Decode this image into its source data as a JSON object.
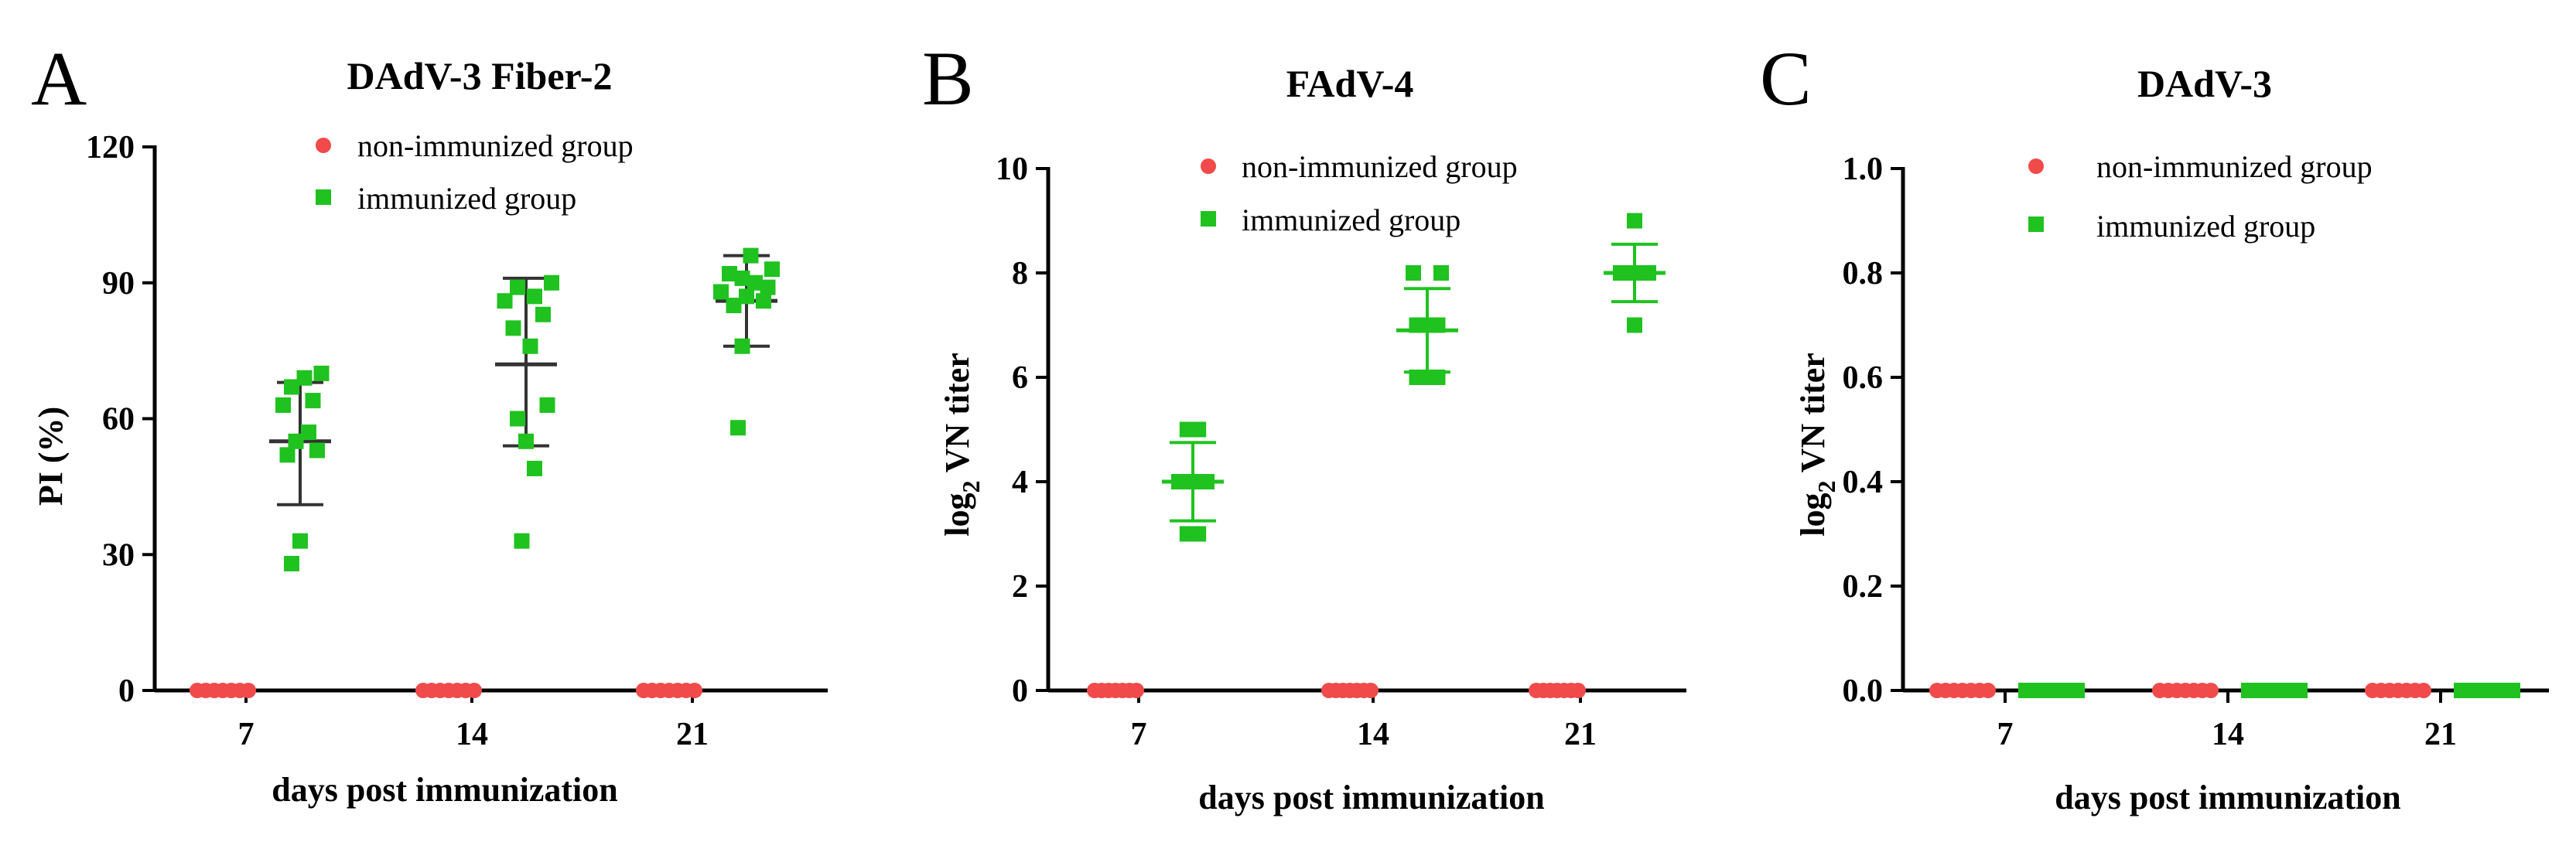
{
  "colors": {
    "non_immunized": "#f04a4a",
    "immunized": "#1fc21f",
    "error_bar_a": "#333333",
    "error_bar_b": "#1fc21f"
  },
  "chart_data": [
    {
      "panel": "A",
      "type": "scatter",
      "title": "DAdV-3 Fiber-2",
      "xlabel": "days post immunization",
      "ylabel": "PI (%)",
      "ylabel_sub": "",
      "ylabel_suffix": "",
      "categories": [
        "7",
        "14",
        "21"
      ],
      "ylim": [
        0,
        120
      ],
      "yticks": [
        0,
        30,
        60,
        90,
        120
      ],
      "ytick_labels": [
        "0",
        "30",
        "60",
        "90",
        "120"
      ],
      "legend": [
        "non-immunized group",
        "immunized group"
      ],
      "series": [
        {
          "name": "non-immunized group",
          "marker": "circle",
          "points": [
            [
              0,
              0
            ],
            [
              0,
              0
            ],
            [
              0,
              0
            ],
            [
              0,
              0
            ],
            [
              0,
              0
            ],
            [
              0,
              0
            ],
            [
              0,
              0
            ],
            [
              1,
              0
            ],
            [
              1,
              0
            ],
            [
              1,
              0
            ],
            [
              1,
              0
            ],
            [
              1,
              0
            ],
            [
              1,
              0
            ],
            [
              1,
              0
            ],
            [
              2,
              0
            ],
            [
              2,
              0
            ],
            [
              2,
              0
            ],
            [
              2,
              0
            ],
            [
              2,
              0
            ],
            [
              2,
              0
            ],
            [
              2,
              0
            ]
          ],
          "jitter": [
            -0.3,
            -0.2,
            -0.1,
            0,
            0.1,
            0.2,
            0.3,
            -0.3,
            -0.2,
            -0.1,
            0,
            0.1,
            0.2,
            0.3,
            -0.3,
            -0.2,
            -0.1,
            0,
            0.1,
            0.2,
            0.3
          ]
        },
        {
          "name": "immunized group",
          "marker": "square",
          "points": [
            [
              0,
              70
            ],
            [
              0,
              69
            ],
            [
              0,
              67
            ],
            [
              0,
              64
            ],
            [
              0,
              63
            ],
            [
              0,
              57
            ],
            [
              0,
              55
            ],
            [
              0,
              53
            ],
            [
              0,
              52
            ],
            [
              0,
              33
            ],
            [
              0,
              28
            ],
            [
              1,
              90
            ],
            [
              1,
              89
            ],
            [
              1,
              87
            ],
            [
              1,
              86
            ],
            [
              1,
              83
            ],
            [
              1,
              80
            ],
            [
              1,
              76
            ],
            [
              1,
              63
            ],
            [
              1,
              60
            ],
            [
              1,
              55
            ],
            [
              1,
              49
            ],
            [
              1,
              33
            ],
            [
              2,
              96
            ],
            [
              2,
              93
            ],
            [
              2,
              92
            ],
            [
              2,
              91
            ],
            [
              2,
              90
            ],
            [
              2,
              89
            ],
            [
              2,
              88
            ],
            [
              2,
              87
            ],
            [
              2,
              86
            ],
            [
              2,
              85
            ],
            [
              2,
              76
            ],
            [
              2,
              58
            ]
          ],
          "jitter": [
            0.25,
            0.05,
            -0.1,
            0.15,
            -0.2,
            0.1,
            -0.05,
            0.2,
            -0.15,
            0,
            -0.1,
            0.3,
            -0.1,
            0.1,
            -0.25,
            0.2,
            -0.15,
            0.05,
            0.25,
            -0.1,
            0,
            0.1,
            -0.05,
            0.05,
            0.3,
            -0.2,
            -0.05,
            0.1,
            0.25,
            -0.3,
            0,
            0.2,
            -0.15,
            -0.05,
            -0.1
          ]
        }
      ],
      "error_bars": [
        {
          "category": 0,
          "mean": 55,
          "lower": 41,
          "upper": 68
        },
        {
          "category": 1,
          "mean": 72,
          "lower": 54,
          "upper": 91
        },
        {
          "category": 2,
          "mean": 86,
          "lower": 76,
          "upper": 96
        }
      ]
    },
    {
      "panel": "B",
      "type": "scatter",
      "title": "FAdV-4",
      "xlabel": "days post immunization",
      "ylabel": "log",
      "ylabel_sub": "2",
      "ylabel_suffix": " VN titer",
      "categories": [
        "7",
        "14",
        "21"
      ],
      "ylim": [
        0,
        10
      ],
      "yticks": [
        0,
        2,
        4,
        6,
        8,
        10
      ],
      "ytick_labels": [
        "0",
        "2",
        "4",
        "6",
        "8",
        "10"
      ],
      "legend": [
        "non-immunized group",
        "immunized group"
      ],
      "series": [
        {
          "name": "non-immunized group",
          "marker": "circle",
          "points": [
            [
              0,
              0
            ],
            [
              0,
              0
            ],
            [
              0,
              0
            ],
            [
              0,
              0
            ],
            [
              0,
              0
            ],
            [
              0,
              0
            ],
            [
              0,
              0
            ],
            [
              1,
              0
            ],
            [
              1,
              0
            ],
            [
              1,
              0
            ],
            [
              1,
              0
            ],
            [
              1,
              0
            ],
            [
              1,
              0
            ],
            [
              1,
              0
            ],
            [
              2,
              0
            ],
            [
              2,
              0
            ],
            [
              2,
              0
            ],
            [
              2,
              0
            ],
            [
              2,
              0
            ],
            [
              2,
              0
            ],
            [
              2,
              0
            ]
          ],
          "jitter": [
            -0.3,
            -0.2,
            -0.1,
            0,
            0.1,
            0.2,
            0.3,
            -0.3,
            -0.2,
            -0.1,
            0,
            0.1,
            0.2,
            0.3,
            -0.3,
            -0.2,
            -0.1,
            0,
            0.1,
            0.2,
            0.3
          ]
        },
        {
          "name": "immunized group",
          "marker": "square",
          "points": [
            [
              0,
              5
            ],
            [
              0,
              5
            ],
            [
              0,
              4
            ],
            [
              0,
              4
            ],
            [
              0,
              4
            ],
            [
              0,
              4
            ],
            [
              0,
              4
            ],
            [
              0,
              3
            ],
            [
              0,
              3
            ],
            [
              1,
              8
            ],
            [
              1,
              8
            ],
            [
              1,
              7
            ],
            [
              1,
              7
            ],
            [
              1,
              7
            ],
            [
              1,
              6
            ],
            [
              1,
              6
            ],
            [
              1,
              6
            ],
            [
              2,
              9
            ],
            [
              2,
              8
            ],
            [
              2,
              8
            ],
            [
              2,
              8
            ],
            [
              2,
              8
            ],
            [
              2,
              8
            ],
            [
              2,
              7
            ]
          ],
          "jitter": [
            -0.08,
            0.08,
            -0.2,
            -0.1,
            0,
            0.1,
            0.2,
            -0.08,
            0.08,
            -0.2,
            0.2,
            -0.15,
            0,
            0.15,
            -0.15,
            0,
            0.15,
            0,
            -0.2,
            -0.1,
            0,
            0.1,
            0.2,
            0
          ]
        }
      ],
      "error_bars": [
        {
          "category": 0,
          "mean": 4.0,
          "lower": 3.25,
          "upper": 4.75
        },
        {
          "category": 1,
          "mean": 6.9,
          "lower": 6.1,
          "upper": 7.7
        },
        {
          "category": 2,
          "mean": 8.0,
          "lower": 7.45,
          "upper": 8.55
        }
      ]
    },
    {
      "panel": "C",
      "type": "scatter",
      "title": "DAdV-3",
      "xlabel": "days post immunization",
      "ylabel": "log",
      "ylabel_sub": "2",
      "ylabel_suffix": " VN titer",
      "categories": [
        "7",
        "14",
        "21"
      ],
      "ylim": [
        0,
        1.0
      ],
      "yticks": [
        0,
        0.2,
        0.4,
        0.6,
        0.8,
        1.0
      ],
      "ytick_labels": [
        "0.0",
        "0.2",
        "0.4",
        "0.6",
        "0.8",
        "1.0"
      ],
      "legend": [
        "non-immunized group",
        "immunized group"
      ],
      "series": [
        {
          "name": "non-immunized group",
          "marker": "circle",
          "points": [
            [
              0,
              0
            ],
            [
              0,
              0
            ],
            [
              0,
              0
            ],
            [
              0,
              0
            ],
            [
              0,
              0
            ],
            [
              0,
              0
            ],
            [
              0,
              0
            ],
            [
              1,
              0
            ],
            [
              1,
              0
            ],
            [
              1,
              0
            ],
            [
              1,
              0
            ],
            [
              1,
              0
            ],
            [
              1,
              0
            ],
            [
              1,
              0
            ],
            [
              2,
              0
            ],
            [
              2,
              0
            ],
            [
              2,
              0
            ],
            [
              2,
              0
            ],
            [
              2,
              0
            ],
            [
              2,
              0
            ],
            [
              2,
              0
            ]
          ],
          "jitter": [
            -0.3,
            -0.2,
            -0.1,
            0,
            0.1,
            0.2,
            0.3,
            -0.3,
            -0.2,
            -0.1,
            0,
            0.1,
            0.2,
            0.3,
            -0.3,
            -0.2,
            -0.1,
            0,
            0.1,
            0.2,
            0.3
          ]
        },
        {
          "name": "immunized group",
          "marker": "square",
          "points": [
            [
              0,
              0
            ],
            [
              0,
              0
            ],
            [
              0,
              0
            ],
            [
              0,
              0
            ],
            [
              0,
              0
            ],
            [
              0,
              0
            ],
            [
              0,
              0
            ],
            [
              1,
              0
            ],
            [
              1,
              0
            ],
            [
              1,
              0
            ],
            [
              1,
              0
            ],
            [
              1,
              0
            ],
            [
              1,
              0
            ],
            [
              1,
              0
            ],
            [
              2,
              0
            ],
            [
              2,
              0
            ],
            [
              2,
              0
            ],
            [
              2,
              0
            ],
            [
              2,
              0
            ],
            [
              2,
              0
            ],
            [
              2,
              0
            ]
          ],
          "jitter": [
            -0.3,
            -0.2,
            -0.1,
            0,
            0.1,
            0.2,
            0.3,
            -0.3,
            -0.2,
            -0.1,
            0,
            0.1,
            0.2,
            0.3,
            -0.3,
            -0.2,
            -0.1,
            0,
            0.1,
            0.2,
            0.3
          ]
        }
      ],
      "error_bars": []
    }
  ]
}
